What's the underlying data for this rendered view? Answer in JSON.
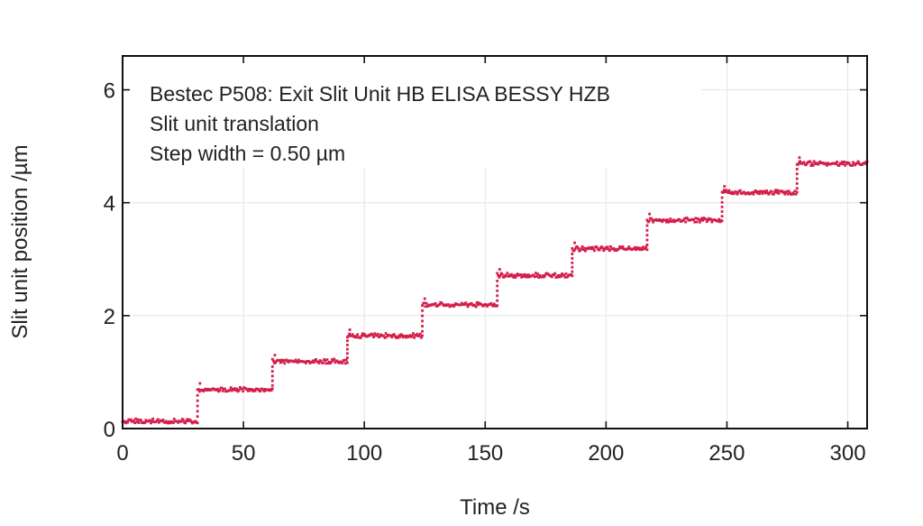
{
  "chart_data": {
    "type": "scatter",
    "title": "",
    "xlabel": "Time /s",
    "ylabel": "Slit unit position /µm",
    "xlim": [
      0,
      308
    ],
    "ylim": [
      0,
      6.6
    ],
    "xticks": [
      0,
      50,
      100,
      150,
      200,
      250,
      300
    ],
    "yticks": [
      0,
      2,
      4,
      6
    ],
    "grid": true,
    "legend": "none",
    "color": "#d41f4b",
    "annotations": [
      "Bestec P508: Exit Slit Unit HB ELISA BESSY HZB",
      "Slit unit translation",
      "Step width = 0.50 µm"
    ],
    "series": [
      {
        "steps": [
          {
            "t_start": 0,
            "t_end": 31,
            "y": 0.12
          },
          {
            "t_start": 31,
            "t_end": 62,
            "y": 0.68
          },
          {
            "t_start": 62,
            "t_end": 93,
            "y": 1.18
          },
          {
            "t_start": 93,
            "t_end": 124,
            "y": 1.63
          },
          {
            "t_start": 124,
            "t_end": 155,
            "y": 2.18
          },
          {
            "t_start": 155,
            "t_end": 186,
            "y": 2.7
          },
          {
            "t_start": 186,
            "t_end": 217,
            "y": 3.17
          },
          {
            "t_start": 217,
            "t_end": 248,
            "y": 3.68
          },
          {
            "t_start": 248,
            "t_end": 279,
            "y": 4.17
          },
          {
            "t_start": 279,
            "t_end": 308,
            "y": 4.68
          }
        ]
      }
    ]
  }
}
